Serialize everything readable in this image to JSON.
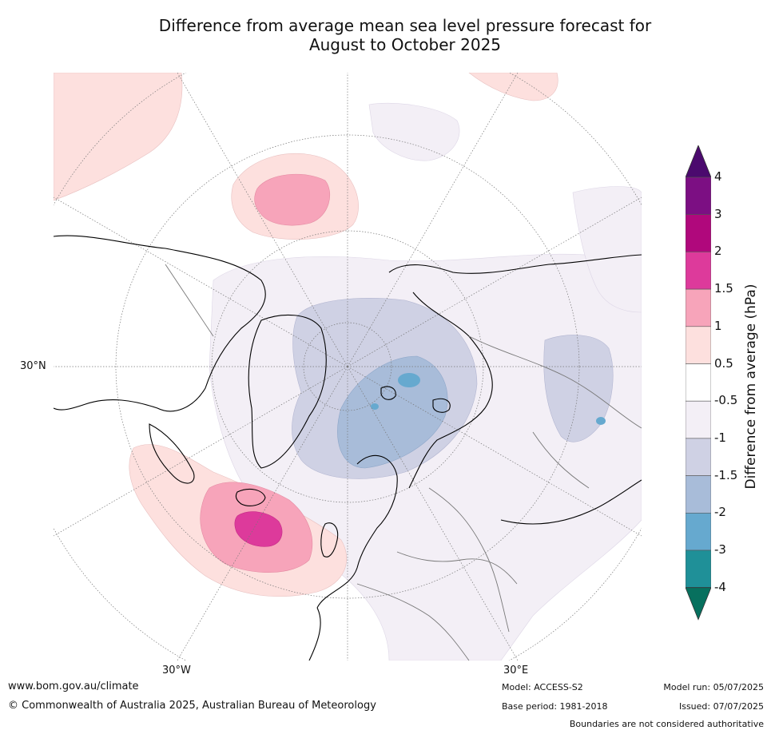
{
  "title": {
    "line1": "Difference from average mean sea level pressure forecast for",
    "line2": "August to October 2025"
  },
  "map": {
    "projection": "polar-stereographic",
    "center": "north-pole",
    "labels": {
      "lat_30n": "30°N",
      "lon_30w": "30°W",
      "lon_30e": "30°E"
    },
    "anomaly_features": [
      {
        "name": "north-pacific-high",
        "category": "1 to 2 hPa"
      },
      {
        "name": "north-atlantic-high",
        "category": "1.5 to 3 hPa"
      },
      {
        "name": "arctic-low",
        "category": "-1 to -3 hPa"
      },
      {
        "name": "asian-low",
        "category": "-1 to -2 hPa"
      }
    ]
  },
  "colorbar": {
    "title": "Difference from average (hPa)",
    "ticks": [
      "4",
      "3",
      "2",
      "1.5",
      "1",
      "0.5",
      "-0.5",
      "-1",
      "-1.5",
      "-2",
      "-3",
      "-4"
    ],
    "colors": [
      "#4b0a6e",
      "#7c0f83",
      "#b0087c",
      "#dd3a9b",
      "#f7a4ba",
      "#fde0de",
      "#ffffff",
      "#f3eff6",
      "#cfd1e4",
      "#a8bcd9",
      "#66a9cf",
      "#1f9098",
      "#07705e"
    ]
  },
  "footer": {
    "website": "www.bom.gov.au/climate",
    "copyright": "© Commonwealth of Australia 2025, Australian Bureau of Meteorology",
    "model": "Model: ACCESS-S2",
    "base_period": "Base period: 1981-2018",
    "model_run": "Model run: 05/07/2025",
    "issued": "Issued: 07/07/2025",
    "disclaimer": "Boundaries are not considered authoritative"
  }
}
